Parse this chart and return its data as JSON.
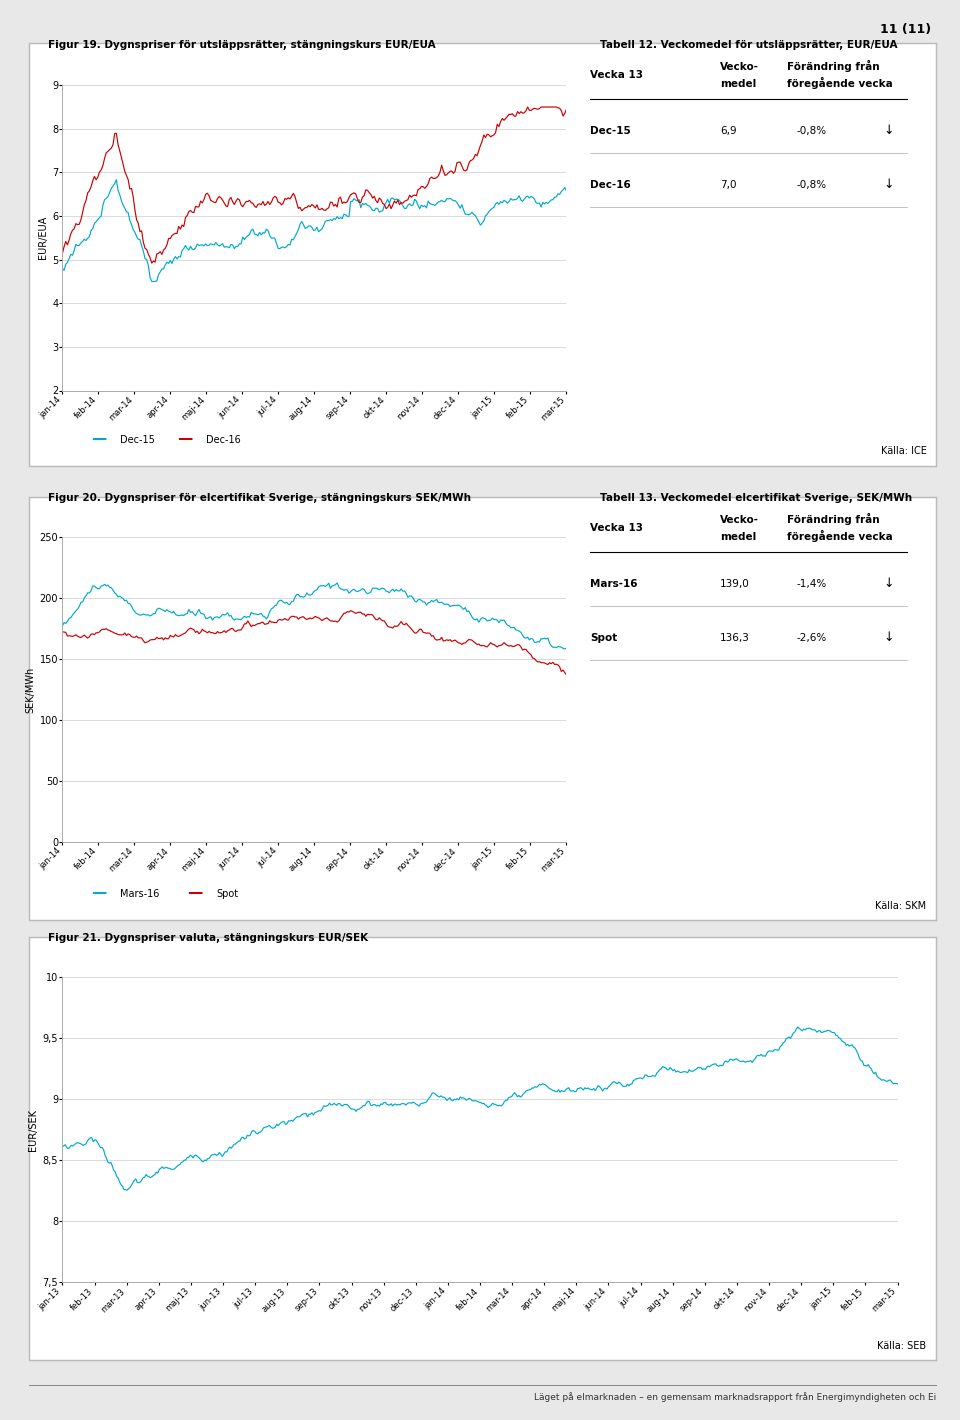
{
  "page_number": "11 (11)",
  "panel1": {
    "fig_title": "Figur 19. Dygnspriser för utsläppsrätter, stängningskurs EUR/EUA",
    "table_title": "Tabell 12. Veckomedel för utsläppsrätter, EUR/EUA",
    "ylabel": "EUR/EUA",
    "ylim": [
      2,
      9
    ],
    "yticks": [
      2,
      3,
      4,
      5,
      6,
      7,
      8,
      9
    ],
    "xtick_labels": [
      "jan-14",
      "feb-14",
      "mar-14",
      "apr-14",
      "maj-14",
      "jun-14",
      "jul-14",
      "aug-14",
      "sep-14",
      "okt-14",
      "nov-14",
      "dec-14",
      "jan-15",
      "feb-15",
      "mar-15"
    ],
    "legend": [
      "Dec-15",
      "Dec-16"
    ],
    "line_colors": [
      "#00aacc",
      "#cc0000"
    ],
    "table_rows": [
      [
        "Dec-15",
        "6,9",
        "-0,8%",
        "↓"
      ],
      [
        "Dec-16",
        "7,0",
        "-0,8%",
        "↓"
      ]
    ],
    "source": "Källa: ICE"
  },
  "panel2": {
    "fig_title": "Figur 20. Dygnspriser för elcertifikat Sverige, stängningskurs SEK/MWh",
    "table_title": "Tabell 13. Veckomedel elcertifikat Sverige, SEK/MWh",
    "ylabel": "SEK/MWh",
    "ylim": [
      0,
      250
    ],
    "yticks": [
      0,
      50,
      100,
      150,
      200,
      250
    ],
    "xtick_labels": [
      "jan-14",
      "feb-14",
      "mar-14",
      "apr-14",
      "maj-14",
      "jun-14",
      "jul-14",
      "aug-14",
      "sep-14",
      "okt-14",
      "nov-14",
      "dec-14",
      "jan-15",
      "feb-15",
      "mar-15"
    ],
    "legend": [
      "Mars-16",
      "Spot"
    ],
    "line_colors": [
      "#00aacc",
      "#cc0000"
    ],
    "table_rows": [
      [
        "Mars-16",
        "139,0",
        "-1,4%",
        "↓"
      ],
      [
        "Spot",
        "136,3",
        "-2,6%",
        "↓"
      ]
    ],
    "source": "Källa: SKM"
  },
  "panel3": {
    "fig_title": "Figur 21. Dygnspriser valuta, stängningskurs EUR/SEK",
    "ylabel": "EUR/SEK",
    "ylim": [
      7.5,
      10
    ],
    "yticks": [
      7.5,
      8.0,
      8.5,
      9.0,
      9.5,
      10.0
    ],
    "ytick_labels": [
      "7,5",
      "8",
      "8,5",
      "9",
      "9,5",
      "10"
    ],
    "xtick_labels": [
      "jan-13",
      "feb-13",
      "mar-13",
      "apr-13",
      "maj-13",
      "jun-13",
      "jul-13",
      "aug-13",
      "sep-13",
      "okt-13",
      "nov-13",
      "dec-13",
      "jan-14",
      "feb-14",
      "mar-14",
      "apr-14",
      "maj-14",
      "jun-14",
      "jul-14",
      "aug-14",
      "sep-14",
      "okt-14",
      "nov-14",
      "dec-14",
      "jan-15",
      "feb-15",
      "mar-15"
    ],
    "line_color": "#00aacc",
    "source": "Källa: SEB"
  },
  "footer": "Läget på elmarknaden – en gemensam marknadsrapport från Energimyndigheten och Ei"
}
